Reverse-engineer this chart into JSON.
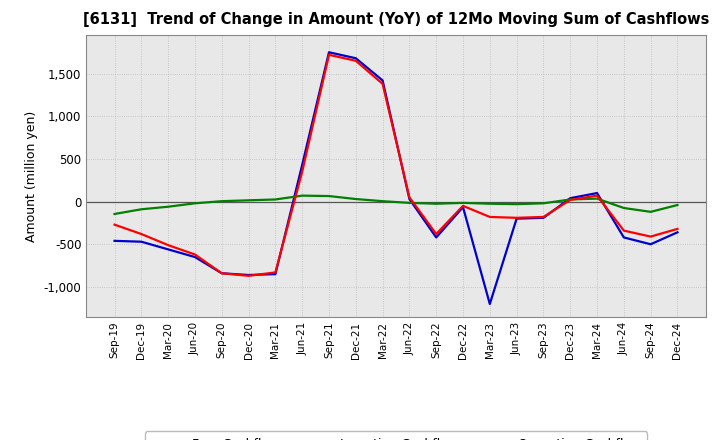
{
  "title": "[6131]  Trend of Change in Amount (YoY) of 12Mo Moving Sum of Cashflows",
  "ylabel": "Amount (million yen)",
  "plot_bg_color": "#e8e8e8",
  "fig_bg_color": "#ffffff",
  "grid_color": "#bbbbbb",
  "x_labels": [
    "Sep-19",
    "Dec-19",
    "Mar-20",
    "Jun-20",
    "Sep-20",
    "Dec-20",
    "Mar-21",
    "Jun-21",
    "Sep-21",
    "Dec-21",
    "Mar-22",
    "Jun-22",
    "Sep-22",
    "Dec-22",
    "Mar-23",
    "Jun-23",
    "Sep-23",
    "Dec-23",
    "Mar-24",
    "Jun-24",
    "Sep-24",
    "Dec-24"
  ],
  "operating_cashflow": [
    -270,
    -380,
    -510,
    -620,
    -840,
    -870,
    -830,
    350,
    1720,
    1650,
    1380,
    50,
    -380,
    -50,
    -180,
    -190,
    -180,
    20,
    70,
    -340,
    -410,
    -320
  ],
  "investing_cashflow": [
    -145,
    -90,
    -60,
    -20,
    5,
    15,
    25,
    70,
    65,
    30,
    5,
    -15,
    -25,
    -15,
    -25,
    -30,
    -20,
    25,
    35,
    -75,
    -120,
    -40
  ],
  "free_cashflow": [
    -460,
    -470,
    -560,
    -650,
    -840,
    -860,
    -850,
    430,
    1750,
    1680,
    1420,
    30,
    -420,
    -65,
    -1200,
    -200,
    -190,
    40,
    100,
    -420,
    -500,
    -360
  ],
  "ylim": [
    -1350,
    1950
  ],
  "yticks": [
    -1000,
    -500,
    0,
    500,
    1000,
    1500
  ],
  "line_colors": {
    "operating": "#ff0000",
    "investing": "#008000",
    "free": "#0000cc"
  },
  "line_width": 1.6
}
